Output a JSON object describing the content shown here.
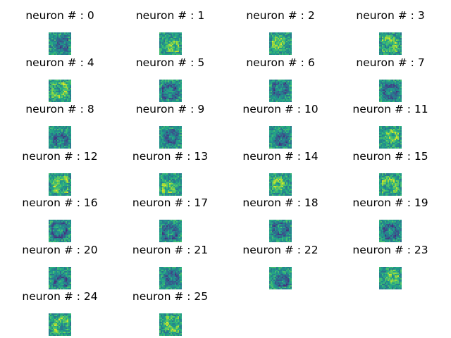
{
  "chart_data": {
    "type": "heatmap",
    "colormap": "viridis",
    "layout_grid": {
      "rows": 7,
      "cols": 4
    },
    "axes_visible": false,
    "panels": [
      {
        "title": "neuron # : 0"
      },
      {
        "title": "neuron # : 1"
      },
      {
        "title": "neuron # : 2"
      },
      {
        "title": "neuron # : 3"
      },
      {
        "title": "neuron # : 4"
      },
      {
        "title": "neuron # : 5"
      },
      {
        "title": "neuron # : 6"
      },
      {
        "title": "neuron # : 7"
      },
      {
        "title": "neuron # : 8"
      },
      {
        "title": "neuron # : 9"
      },
      {
        "title": "neuron # : 10"
      },
      {
        "title": "neuron # : 11"
      },
      {
        "title": "neuron # : 12"
      },
      {
        "title": "neuron # : 13"
      },
      {
        "title": "neuron # : 14"
      },
      {
        "title": "neuron # : 15"
      },
      {
        "title": "neuron # : 16"
      },
      {
        "title": "neuron # : 17"
      },
      {
        "title": "neuron # : 18"
      },
      {
        "title": "neuron # : 19"
      },
      {
        "title": "neuron # : 20"
      },
      {
        "title": "neuron # : 21"
      },
      {
        "title": "neuron # : 22"
      },
      {
        "title": "neuron # : 23"
      },
      {
        "title": "neuron # : 24"
      },
      {
        "title": "neuron # : 25"
      }
    ]
  }
}
